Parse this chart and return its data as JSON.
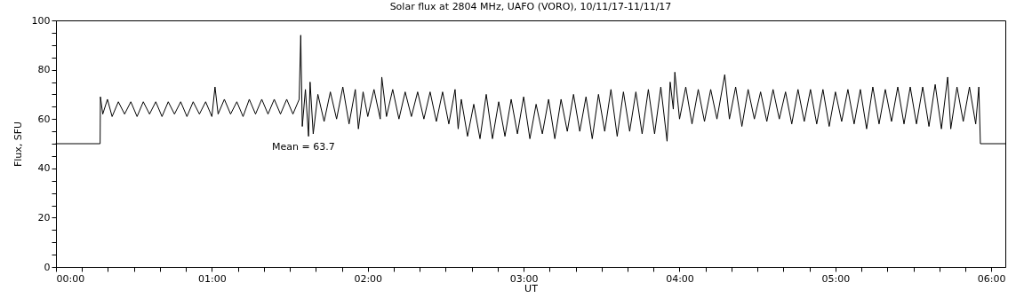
{
  "chart_data": {
    "type": "line",
    "title": "Solar flux at 2804 MHz, UAFO (VORO),  10/11/17-11/11/17",
    "xlabel": "UT",
    "ylabel": "Flux, SFU",
    "annotations": [
      "Mean =   63.7"
    ],
    "xlim": [
      0,
      6.09
    ],
    "ylim": [
      0,
      100
    ],
    "xticks": [
      {
        "value": 0,
        "label": "00:00"
      },
      {
        "value": 0.1667,
        "label": null
      },
      {
        "value": 0.3333,
        "label": null
      },
      {
        "value": 0.5,
        "label": null
      },
      {
        "value": 0.6667,
        "label": null
      },
      {
        "value": 0.8333,
        "label": null
      },
      {
        "value": 1,
        "label": "01:00"
      },
      {
        "value": 1.1667,
        "label": null
      },
      {
        "value": 1.3333,
        "label": null
      },
      {
        "value": 1.5,
        "label": null
      },
      {
        "value": 1.6667,
        "label": null
      },
      {
        "value": 1.8333,
        "label": null
      },
      {
        "value": 2,
        "label": "02:00"
      },
      {
        "value": 2.1667,
        "label": null
      },
      {
        "value": 2.3333,
        "label": null
      },
      {
        "value": 2.5,
        "label": null
      },
      {
        "value": 2.6667,
        "label": null
      },
      {
        "value": 2.8333,
        "label": null
      },
      {
        "value": 3,
        "label": "03:00"
      },
      {
        "value": 3.1667,
        "label": null
      },
      {
        "value": 3.3333,
        "label": null
      },
      {
        "value": 3.5,
        "label": null
      },
      {
        "value": 3.6667,
        "label": null
      },
      {
        "value": 3.8333,
        "label": null
      },
      {
        "value": 4,
        "label": "04:00"
      },
      {
        "value": 4.1667,
        "label": null
      },
      {
        "value": 4.3333,
        "label": null
      },
      {
        "value": 4.5,
        "label": null
      },
      {
        "value": 4.6667,
        "label": null
      },
      {
        "value": 4.8333,
        "label": null
      },
      {
        "value": 5,
        "label": "05:00"
      },
      {
        "value": 5.1667,
        "label": null
      },
      {
        "value": 5.3333,
        "label": null
      },
      {
        "value": 5.5,
        "label": null
      },
      {
        "value": 5.6667,
        "label": null
      },
      {
        "value": 5.8333,
        "label": null
      },
      {
        "value": 6,
        "label": "06:00"
      }
    ],
    "yticks": [
      0,
      {
        "value": 5,
        "label": null
      },
      {
        "value": 10,
        "label": null
      },
      {
        "value": 15,
        "label": null
      },
      20,
      {
        "value": 25,
        "label": null
      },
      {
        "value": 30,
        "label": null
      },
      {
        "value": 35,
        "label": null
      },
      40,
      {
        "value": 45,
        "label": null
      },
      {
        "value": 50,
        "label": null
      },
      {
        "value": 55,
        "label": null
      },
      60,
      {
        "value": 65,
        "label": null
      },
      {
        "value": 70,
        "label": null
      },
      {
        "value": 75,
        "label": null
      },
      80,
      {
        "value": 85,
        "label": null
      },
      {
        "value": 90,
        "label": null
      },
      {
        "value": 95,
        "label": null
      },
      100
    ],
    "grid": false,
    "marker": "none",
    "line_style": "solid",
    "series": [
      {
        "color": "#000000",
        "x": [
          0,
          0.283,
          0.285,
          0.3,
          0.33,
          0.36,
          0.4,
          0.44,
          0.48,
          0.52,
          0.56,
          0.6,
          0.64,
          0.68,
          0.72,
          0.76,
          0.8,
          0.84,
          0.88,
          0.92,
          0.96,
          1.0,
          1.02,
          1.04,
          1.08,
          1.12,
          1.16,
          1.2,
          1.24,
          1.28,
          1.32,
          1.36,
          1.4,
          1.44,
          1.48,
          1.52,
          1.56,
          1.57,
          1.58,
          1.6,
          1.62,
          1.63,
          1.65,
          1.68,
          1.72,
          1.76,
          1.8,
          1.84,
          1.88,
          1.92,
          1.94,
          1.97,
          2.0,
          2.04,
          2.08,
          2.09,
          2.12,
          2.16,
          2.2,
          2.24,
          2.28,
          2.32,
          2.36,
          2.4,
          2.44,
          2.48,
          2.52,
          2.56,
          2.58,
          2.6,
          2.64,
          2.68,
          2.72,
          2.76,
          2.8,
          2.84,
          2.88,
          2.92,
          2.96,
          3.0,
          3.04,
          3.08,
          3.12,
          3.16,
          3.2,
          3.24,
          3.28,
          3.32,
          3.36,
          3.4,
          3.44,
          3.48,
          3.52,
          3.56,
          3.6,
          3.64,
          3.68,
          3.72,
          3.76,
          3.8,
          3.84,
          3.88,
          3.92,
          3.94,
          3.96,
          3.97,
          4.0,
          4.04,
          4.08,
          4.12,
          4.16,
          4.2,
          4.24,
          4.29,
          4.32,
          4.36,
          4.4,
          4.44,
          4.48,
          4.52,
          4.56,
          4.6,
          4.64,
          4.68,
          4.72,
          4.76,
          4.8,
          4.84,
          4.88,
          4.92,
          4.96,
          5.0,
          5.04,
          5.08,
          5.12,
          5.16,
          5.2,
          5.24,
          5.28,
          5.32,
          5.36,
          5.4,
          5.44,
          5.48,
          5.52,
          5.56,
          5.6,
          5.64,
          5.68,
          5.72,
          5.74,
          5.78,
          5.82,
          5.86,
          5.9,
          5.92,
          5.93,
          6.09
        ],
        "values": [
          50,
          50,
          69,
          62,
          68,
          61,
          67,
          62,
          67,
          61,
          67,
          62,
          67,
          61,
          67,
          62,
          67,
          61,
          67,
          62,
          67,
          61,
          73,
          62,
          68,
          62,
          67,
          61,
          68,
          62,
          68,
          62,
          68,
          62,
          68,
          62,
          68,
          94,
          57,
          72,
          53,
          75,
          54,
          70,
          59,
          71,
          60,
          73,
          58,
          72,
          56,
          71,
          61,
          72,
          60,
          77,
          61,
          72,
          60,
          71,
          61,
          71,
          60,
          71,
          59,
          71,
          58,
          72,
          56,
          68,
          53,
          66,
          52,
          70,
          52,
          67,
          53,
          68,
          54,
          69,
          52,
          66,
          54,
          68,
          52,
          68,
          55,
          70,
          55,
          69,
          52,
          70,
          55,
          72,
          53,
          71,
          55,
          71,
          54,
          72,
          54,
          73,
          51,
          75,
          64,
          79,
          60,
          73,
          58,
          72,
          59,
          72,
          60,
          78,
          60,
          73,
          57,
          72,
          60,
          71,
          59,
          72,
          60,
          71,
          58,
          72,
          59,
          72,
          58,
          72,
          57,
          71,
          59,
          72,
          58,
          72,
          56,
          73,
          58,
          72,
          59,
          73,
          58,
          73,
          58,
          73,
          57,
          74,
          56,
          77,
          56,
          73,
          59,
          73,
          58,
          73,
          50,
          50
        ]
      }
    ]
  }
}
